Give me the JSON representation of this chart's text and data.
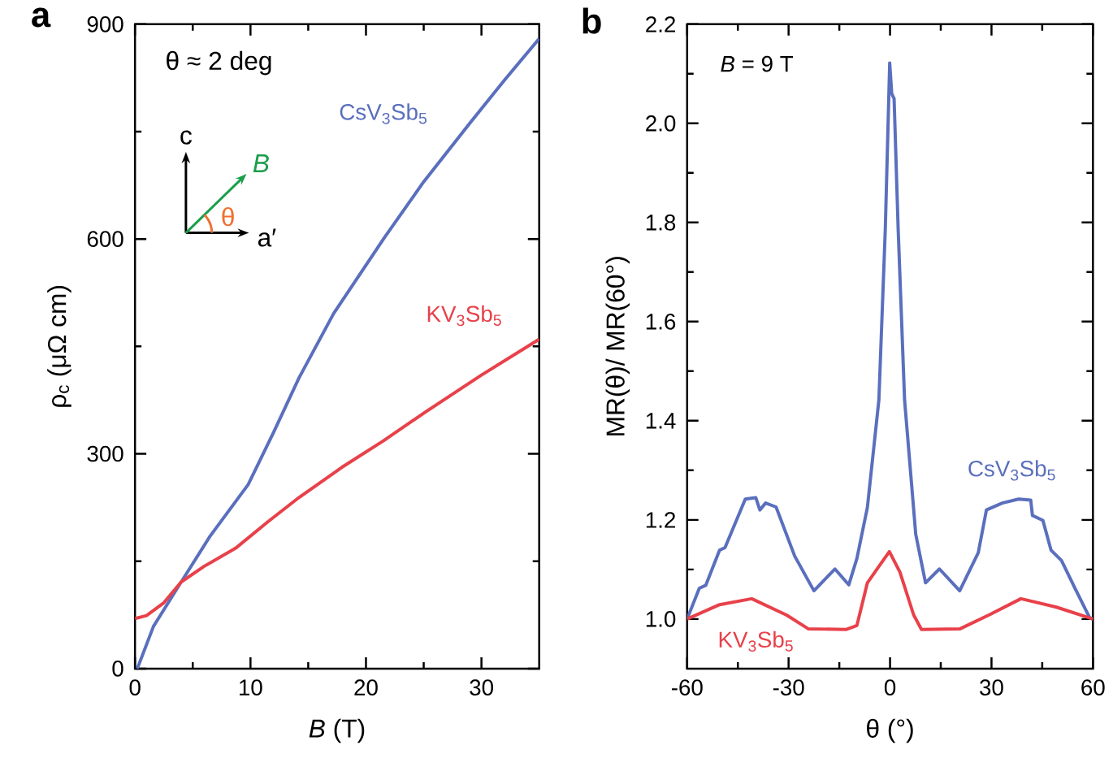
{
  "chart_data": [
    {
      "type": "line",
      "title": "a",
      "xlabel": "*B* (T)",
      "ylabel": "ρ$_{c}$ (μΩ cm)",
      "annotations": [
        "θ ≈ 2 deg",
        "c",
        "B",
        "a′",
        "θ"
      ],
      "xlim": [
        0,
        35
      ],
      "ylim": [
        0,
        900
      ],
      "xticks": [
        0,
        {
          "value": 5,
          "label": null
        },
        10,
        {
          "value": 15,
          "label": null
        },
        20,
        {
          "value": 25,
          "label": null
        },
        30
      ],
      "yticks": [
        0,
        {
          "value": 150,
          "label": null
        },
        300,
        {
          "value": 450,
          "label": null
        },
        600,
        {
          "value": 750,
          "label": null
        },
        900
      ],
      "series": [
        {
          "name": "CsV$_{3}$Sb$_{5}$",
          "color": "#5a6fbd",
          "x": [
            0.2,
            1.6,
            4,
            6.5,
            9.8,
            12,
            14.2,
            17.2,
            21.6,
            25,
            29,
            32,
            35
          ],
          "values": [
            0,
            59,
            121,
            185,
            257,
            330,
            406,
            496,
            602,
            680,
            762,
            822,
            880
          ]
        },
        {
          "name": "KV$_{3}$Sb$_{5}$",
          "color": "#e8414a",
          "x": [
            0,
            1,
            2.5,
            4,
            6,
            8.7,
            11.5,
            14.2,
            17.9,
            21.5,
            25.2,
            30,
            35
          ],
          "values": [
            70,
            74,
            92,
            121,
            143,
            168,
            205,
            239,
            281,
            318,
            359,
            410,
            460
          ]
        }
      ]
    },
    {
      "type": "line",
      "title": "b",
      "xlabel": "θ (°)",
      "ylabel": "MR(θ)/ MR(60°)",
      "annotations": [
        "*B* = 9 T"
      ],
      "xlim": [
        -60,
        60
      ],
      "ylim": [
        0.9,
        2.2
      ],
      "xticks": [
        -60,
        {
          "value": -45,
          "label": null
        },
        -30,
        {
          "value": -15,
          "label": null
        },
        0,
        {
          "value": 15,
          "label": null
        },
        30,
        {
          "value": 45,
          "label": null
        },
        60
      ],
      "yticks": [
        {
          "value": 1.0,
          "label": "1.0"
        },
        {
          "value": 1.1,
          "label": null
        },
        1.2,
        {
          "value": 1.3,
          "label": null
        },
        1.4,
        {
          "value": 1.5,
          "label": null
        },
        1.6,
        {
          "value": 1.7,
          "label": null
        },
        1.8,
        {
          "value": 1.9,
          "label": null
        },
        {
          "value": 2.0,
          "label": "2.0"
        },
        {
          "value": 2.1,
          "label": null
        },
        2.2
      ],
      "series": [
        {
          "name": "CsV$_{3}$Sb$_{5}$",
          "color": "#5a6fbd",
          "x": [
            -60,
            -56.4,
            -54.5,
            -50.4,
            -48.8,
            -42.8,
            -39.7,
            -38.5,
            -36.8,
            -33.7,
            -28.2,
            -22.5,
            -16.3,
            -12.2,
            -9.8,
            -6.7,
            -3.3,
            -1.4,
            -0.1,
            0.5,
            1.2,
            2.4,
            4.3,
            7.6,
            10.5,
            14.6,
            20.6,
            26.1,
            28.5,
            33.2,
            38,
            41.6,
            42.1,
            45.2,
            47.6,
            50.7,
            54.7,
            59,
            60
          ],
          "values": [
            1.0,
            1.062,
            1.068,
            1.139,
            1.144,
            1.242,
            1.245,
            1.22,
            1.234,
            1.226,
            1.127,
            1.057,
            1.101,
            1.069,
            1.122,
            1.225,
            1.442,
            1.787,
            2.122,
            2.06,
            2.05,
            1.787,
            1.442,
            1.171,
            1.073,
            1.101,
            1.057,
            1.134,
            1.22,
            1.234,
            1.242,
            1.24,
            1.209,
            1.199,
            1.139,
            1.118,
            1.062,
            1.003,
            1.0
          ]
        },
        {
          "name": "KV$_{3}$Sb$_{5}$",
          "color": "#e8414a",
          "x": [
            -60,
            -50.4,
            -40.9,
            -30.6,
            -24.1,
            -12.9,
            -9.8,
            -6.7,
            -3.3,
            -0.2,
            2.9,
            7,
            9.3,
            20.6,
            29.2,
            38.7,
            49.2,
            60
          ],
          "values": [
            1.0,
            1.029,
            1.041,
            1.008,
            0.98,
            0.979,
            0.987,
            1.073,
            1.106,
            1.136,
            1.095,
            1.008,
            0.979,
            0.98,
            1.008,
            1.041,
            1.024,
            1.0
          ]
        }
      ]
    }
  ]
}
